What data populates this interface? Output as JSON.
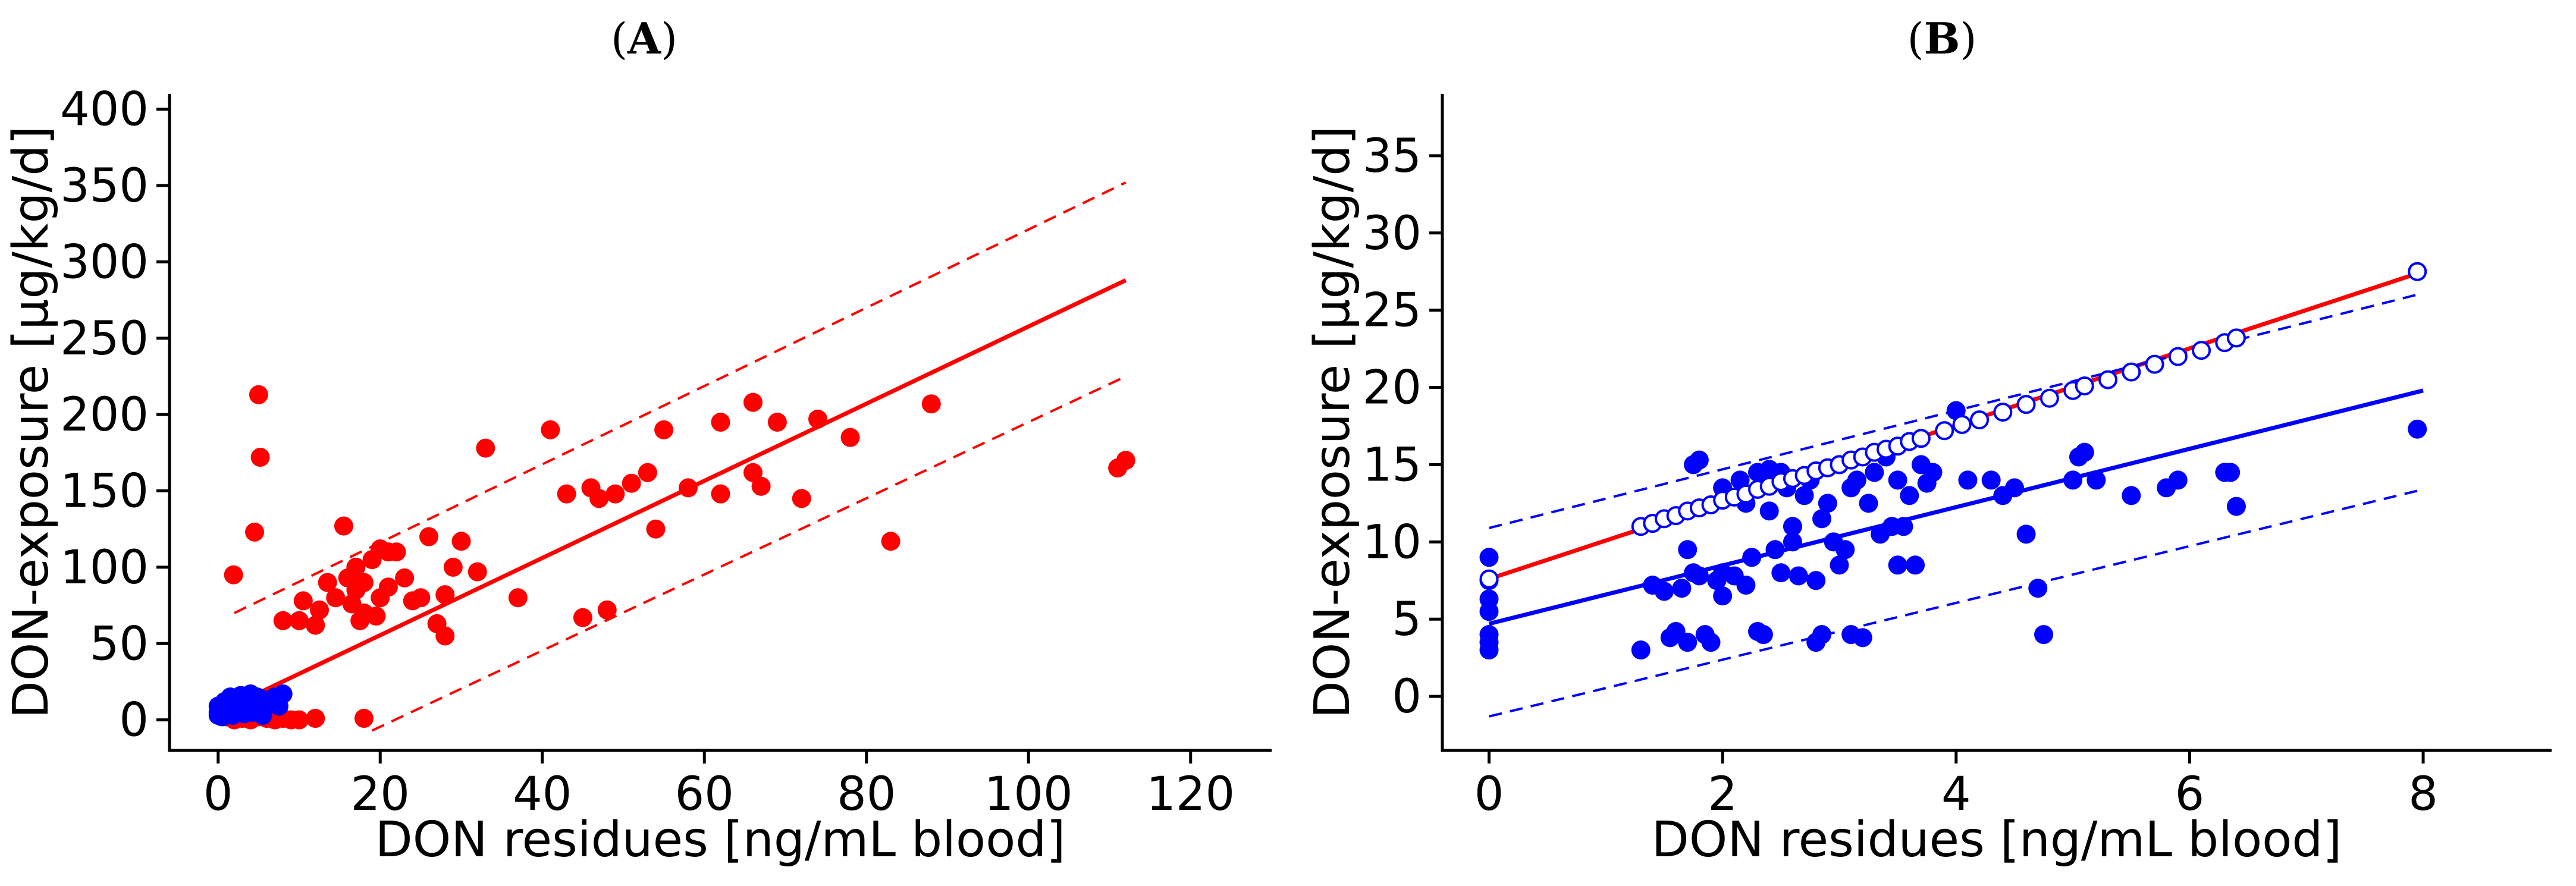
{
  "chart_data": [
    {
      "type": "scatter",
      "panel_label": "A",
      "xlabel": "DON residues [ng/mL blood]",
      "ylabel": "DON-exposure [µg/kg/d]",
      "xlim": [
        -6,
        130
      ],
      "ylim": [
        -20,
        410
      ],
      "xticks": [
        0,
        20,
        40,
        60,
        80,
        100,
        120
      ],
      "yticks": [
        0,
        50,
        100,
        150,
        200,
        250,
        300,
        350,
        400
      ],
      "colors": {
        "red": "#ff0000",
        "blue": "#0000ff"
      },
      "series": [
        {
          "color": "red",
          "points": [
            [
              1.9,
              95
            ],
            [
              4.5,
              123
            ],
            [
              5,
              213
            ],
            [
              5.2,
              172
            ],
            [
              8,
              65
            ],
            [
              10,
              65
            ],
            [
              10.5,
              78
            ],
            [
              12,
              62
            ],
            [
              12.5,
              72
            ],
            [
              13.5,
              90
            ],
            [
              14.5,
              80
            ],
            [
              15.5,
              127
            ],
            [
              16,
              93
            ],
            [
              16.5,
              76
            ],
            [
              17,
              85
            ],
            [
              17,
              100
            ],
            [
              17.5,
              65
            ],
            [
              18,
              70
            ],
            [
              18,
              90
            ],
            [
              19,
              105
            ],
            [
              19.5,
              68
            ],
            [
              20,
              80
            ],
            [
              20,
              112
            ],
            [
              21,
              87
            ],
            [
              21,
              110
            ],
            [
              22,
              110
            ],
            [
              23,
              93
            ],
            [
              24,
              78
            ],
            [
              25,
              80
            ],
            [
              26,
              120
            ],
            [
              27,
              63
            ],
            [
              28,
              82
            ],
            [
              28,
              55
            ],
            [
              29,
              100
            ],
            [
              30,
              117
            ],
            [
              32,
              97
            ],
            [
              33,
              178
            ],
            [
              37,
              80
            ],
            [
              41,
              190
            ],
            [
              43,
              148
            ],
            [
              45,
              67
            ],
            [
              46,
              152
            ],
            [
              47,
              145
            ],
            [
              48,
              72
            ],
            [
              49,
              148
            ],
            [
              51,
              155
            ],
            [
              53,
              162
            ],
            [
              54,
              125
            ],
            [
              55,
              190
            ],
            [
              58,
              152
            ],
            [
              62,
              148
            ],
            [
              62,
              195
            ],
            [
              66,
              208
            ],
            [
              66,
              162
            ],
            [
              67,
              153
            ],
            [
              69,
              195
            ],
            [
              72,
              145
            ],
            [
              74,
              197
            ],
            [
              78,
              185
            ],
            [
              83,
              117
            ],
            [
              88,
              207
            ],
            [
              111,
              165
            ],
            [
              112,
              170
            ],
            [
              1,
              2
            ],
            [
              2,
              0
            ],
            [
              3,
              1
            ],
            [
              4,
              0
            ],
            [
              5,
              2
            ],
            [
              6,
              1
            ],
            [
              7,
              0
            ],
            [
              8,
              1
            ],
            [
              9,
              0
            ],
            [
              10,
              0
            ],
            [
              12,
              1
            ],
            [
              18,
              1
            ]
          ]
        },
        {
          "color": "blue",
          "points": [
            [
              0,
              9
            ],
            [
              0,
              5
            ],
            [
              0,
              3
            ],
            [
              0.3,
              7
            ],
            [
              0.5,
              2
            ],
            [
              0.8,
              12
            ],
            [
              1,
              4
            ],
            [
              1.2,
              8
            ],
            [
              1.5,
              15
            ],
            [
              1.8,
              3
            ],
            [
              2,
              10
            ],
            [
              2.2,
              14
            ],
            [
              2.5,
              6
            ],
            [
              2.8,
              16
            ],
            [
              3,
              11
            ],
            [
              3.2,
              4
            ],
            [
              3.5,
              13
            ],
            [
              3.8,
              8
            ],
            [
              4,
              17
            ],
            [
              4.2,
              5
            ],
            [
              4.5,
              12
            ],
            [
              4.8,
              15
            ],
            [
              5,
              7
            ],
            [
              5.2,
              14
            ],
            [
              5.5,
              3
            ],
            [
              6,
              10
            ],
            [
              6.5,
              13
            ],
            [
              7,
              15
            ],
            [
              7.5,
              9
            ],
            [
              8,
              17
            ]
          ]
        }
      ],
      "lines": [
        {
          "color": "red",
          "style": "solid",
          "x": [
            2,
            112
          ],
          "y": [
            10,
            288
          ]
        },
        {
          "color": "red",
          "style": "dashed",
          "x": [
            2,
            112
          ],
          "y": [
            70,
            352
          ]
        },
        {
          "color": "red",
          "style": "dashed",
          "x": [
            19,
            112
          ],
          "y": [
            -7,
            225
          ]
        }
      ]
    },
    {
      "type": "scatter",
      "panel_label": "B",
      "xlabel": "DON residues [ng/mL blood]",
      "ylabel": "DON-exposure [µg/kg/d]",
      "xlim": [
        -0.4,
        9.1
      ],
      "ylim": [
        -3.5,
        39
      ],
      "xticks": [
        0,
        2,
        4,
        6,
        8
      ],
      "yticks": [
        0,
        5,
        10,
        15,
        20,
        25,
        30,
        35
      ],
      "colors": {
        "red": "#ff0000",
        "blue": "#0000ff"
      },
      "series": [
        {
          "color": "blue",
          "marker": "filled",
          "points": [
            [
              0,
              9
            ],
            [
              0,
              7.5
            ],
            [
              0,
              6.3
            ],
            [
              0,
              5.5
            ],
            [
              0,
              4
            ],
            [
              0,
              3.5
            ],
            [
              0,
              3
            ],
            [
              1.3,
              3
            ],
            [
              1.4,
              7.2
            ],
            [
              1.5,
              6.8
            ],
            [
              1.55,
              3.8
            ],
            [
              1.6,
              4.2
            ],
            [
              1.65,
              7
            ],
            [
              1.7,
              9.5
            ],
            [
              1.7,
              3.5
            ],
            [
              1.75,
              8
            ],
            [
              1.75,
              15
            ],
            [
              1.8,
              15.3
            ],
            [
              1.8,
              7.8
            ],
            [
              1.85,
              4
            ],
            [
              1.9,
              3.5
            ],
            [
              1.95,
              7.5
            ],
            [
              2,
              8
            ],
            [
              2,
              6.5
            ],
            [
              2,
              13.5
            ],
            [
              2.1,
              7.8
            ],
            [
              2.15,
              14
            ],
            [
              2.2,
              7.2
            ],
            [
              2.2,
              12.5
            ],
            [
              2.25,
              9
            ],
            [
              2.3,
              14.5
            ],
            [
              2.3,
              4.2
            ],
            [
              2.35,
              4
            ],
            [
              2.4,
              14.7
            ],
            [
              2.4,
              12
            ],
            [
              2.45,
              9.5
            ],
            [
              2.5,
              14.5
            ],
            [
              2.55,
              13.5
            ],
            [
              2.5,
              8
            ],
            [
              2.6,
              11
            ],
            [
              2.6,
              10
            ],
            [
              2.65,
              7.8
            ],
            [
              2.7,
              13
            ],
            [
              2.75,
              14
            ],
            [
              2.8,
              7.5
            ],
            [
              2.8,
              3.5
            ],
            [
              2.85,
              4
            ],
            [
              2.85,
              11.5
            ],
            [
              2.9,
              12.5
            ],
            [
              2.95,
              10
            ],
            [
              3,
              15
            ],
            [
              3,
              8.5
            ],
            [
              3.05,
              9.5
            ],
            [
              3.1,
              13.5
            ],
            [
              3.1,
              4
            ],
            [
              3.15,
              14
            ],
            [
              3.2,
              3.8
            ],
            [
              3.25,
              12.5
            ],
            [
              3.3,
              14.5
            ],
            [
              3.35,
              10.5
            ],
            [
              3.4,
              15.5
            ],
            [
              3.45,
              11
            ],
            [
              3.5,
              14
            ],
            [
              3.5,
              8.5
            ],
            [
              3.55,
              11
            ],
            [
              3.6,
              13
            ],
            [
              3.65,
              8.5
            ],
            [
              3.7,
              15
            ],
            [
              3.75,
              13.8
            ],
            [
              3.8,
              14.5
            ],
            [
              4,
              18.5
            ],
            [
              4.1,
              14
            ],
            [
              4.3,
              14
            ],
            [
              4.4,
              13
            ],
            [
              4.5,
              13.5
            ],
            [
              4.6,
              10.5
            ],
            [
              4.7,
              7
            ],
            [
              4.75,
              4
            ],
            [
              5,
              14
            ],
            [
              5.05,
              15.5
            ],
            [
              5.1,
              15.8
            ],
            [
              5.2,
              14
            ],
            [
              5.5,
              13
            ],
            [
              5.8,
              13.5
            ],
            [
              5.9,
              14
            ],
            [
              6.3,
              14.5
            ],
            [
              6.35,
              14.5
            ],
            [
              6.4,
              12.3
            ],
            [
              7.95,
              17.3
            ]
          ]
        },
        {
          "color": "blue",
          "marker": "open",
          "points": [
            [
              0,
              7.6
            ],
            [
              1.3,
              11
            ],
            [
              1.4,
              11.2
            ],
            [
              1.5,
              11.5
            ],
            [
              1.6,
              11.7
            ],
            [
              1.7,
              12
            ],
            [
              1.8,
              12.2
            ],
            [
              1.9,
              12.4
            ],
            [
              2,
              12.7
            ],
            [
              2.1,
              12.9
            ],
            [
              2.2,
              13.1
            ],
            [
              2.3,
              13.4
            ],
            [
              2.4,
              13.6
            ],
            [
              2.5,
              13.9
            ],
            [
              2.6,
              14.1
            ],
            [
              2.7,
              14.3
            ],
            [
              2.8,
              14.6
            ],
            [
              2.9,
              14.8
            ],
            [
              3,
              15
            ],
            [
              3.1,
              15.3
            ],
            [
              3.2,
              15.5
            ],
            [
              3.3,
              15.8
            ],
            [
              3.4,
              16
            ],
            [
              3.5,
              16.2
            ],
            [
              3.6,
              16.5
            ],
            [
              3.7,
              16.7
            ],
            [
              3.9,
              17.2
            ],
            [
              4.05,
              17.6
            ],
            [
              4.2,
              17.9
            ],
            [
              4.4,
              18.4
            ],
            [
              4.6,
              18.9
            ],
            [
              4.8,
              19.3
            ],
            [
              5,
              19.8
            ],
            [
              5.1,
              20.1
            ],
            [
              5.3,
              20.5
            ],
            [
              5.5,
              21
            ],
            [
              5.7,
              21.5
            ],
            [
              5.9,
              22
            ],
            [
              6.1,
              22.4
            ],
            [
              6.3,
              22.9
            ],
            [
              6.4,
              23.2
            ],
            [
              7.95,
              27.5
            ]
          ]
        }
      ],
      "lines": [
        {
          "color": "red",
          "style": "solid",
          "x": [
            0,
            8
          ],
          "y": [
            7.6,
            27.5
          ]
        },
        {
          "color": "blue",
          "style": "solid",
          "x": [
            0,
            8
          ],
          "y": [
            4.7,
            19.8
          ]
        },
        {
          "color": "blue",
          "style": "dashed",
          "x": [
            0,
            8
          ],
          "y": [
            10.9,
            26.1
          ]
        },
        {
          "color": "blue",
          "style": "dashed",
          "x": [
            0,
            8
          ],
          "y": [
            -1.3,
            13.4
          ]
        }
      ]
    }
  ]
}
